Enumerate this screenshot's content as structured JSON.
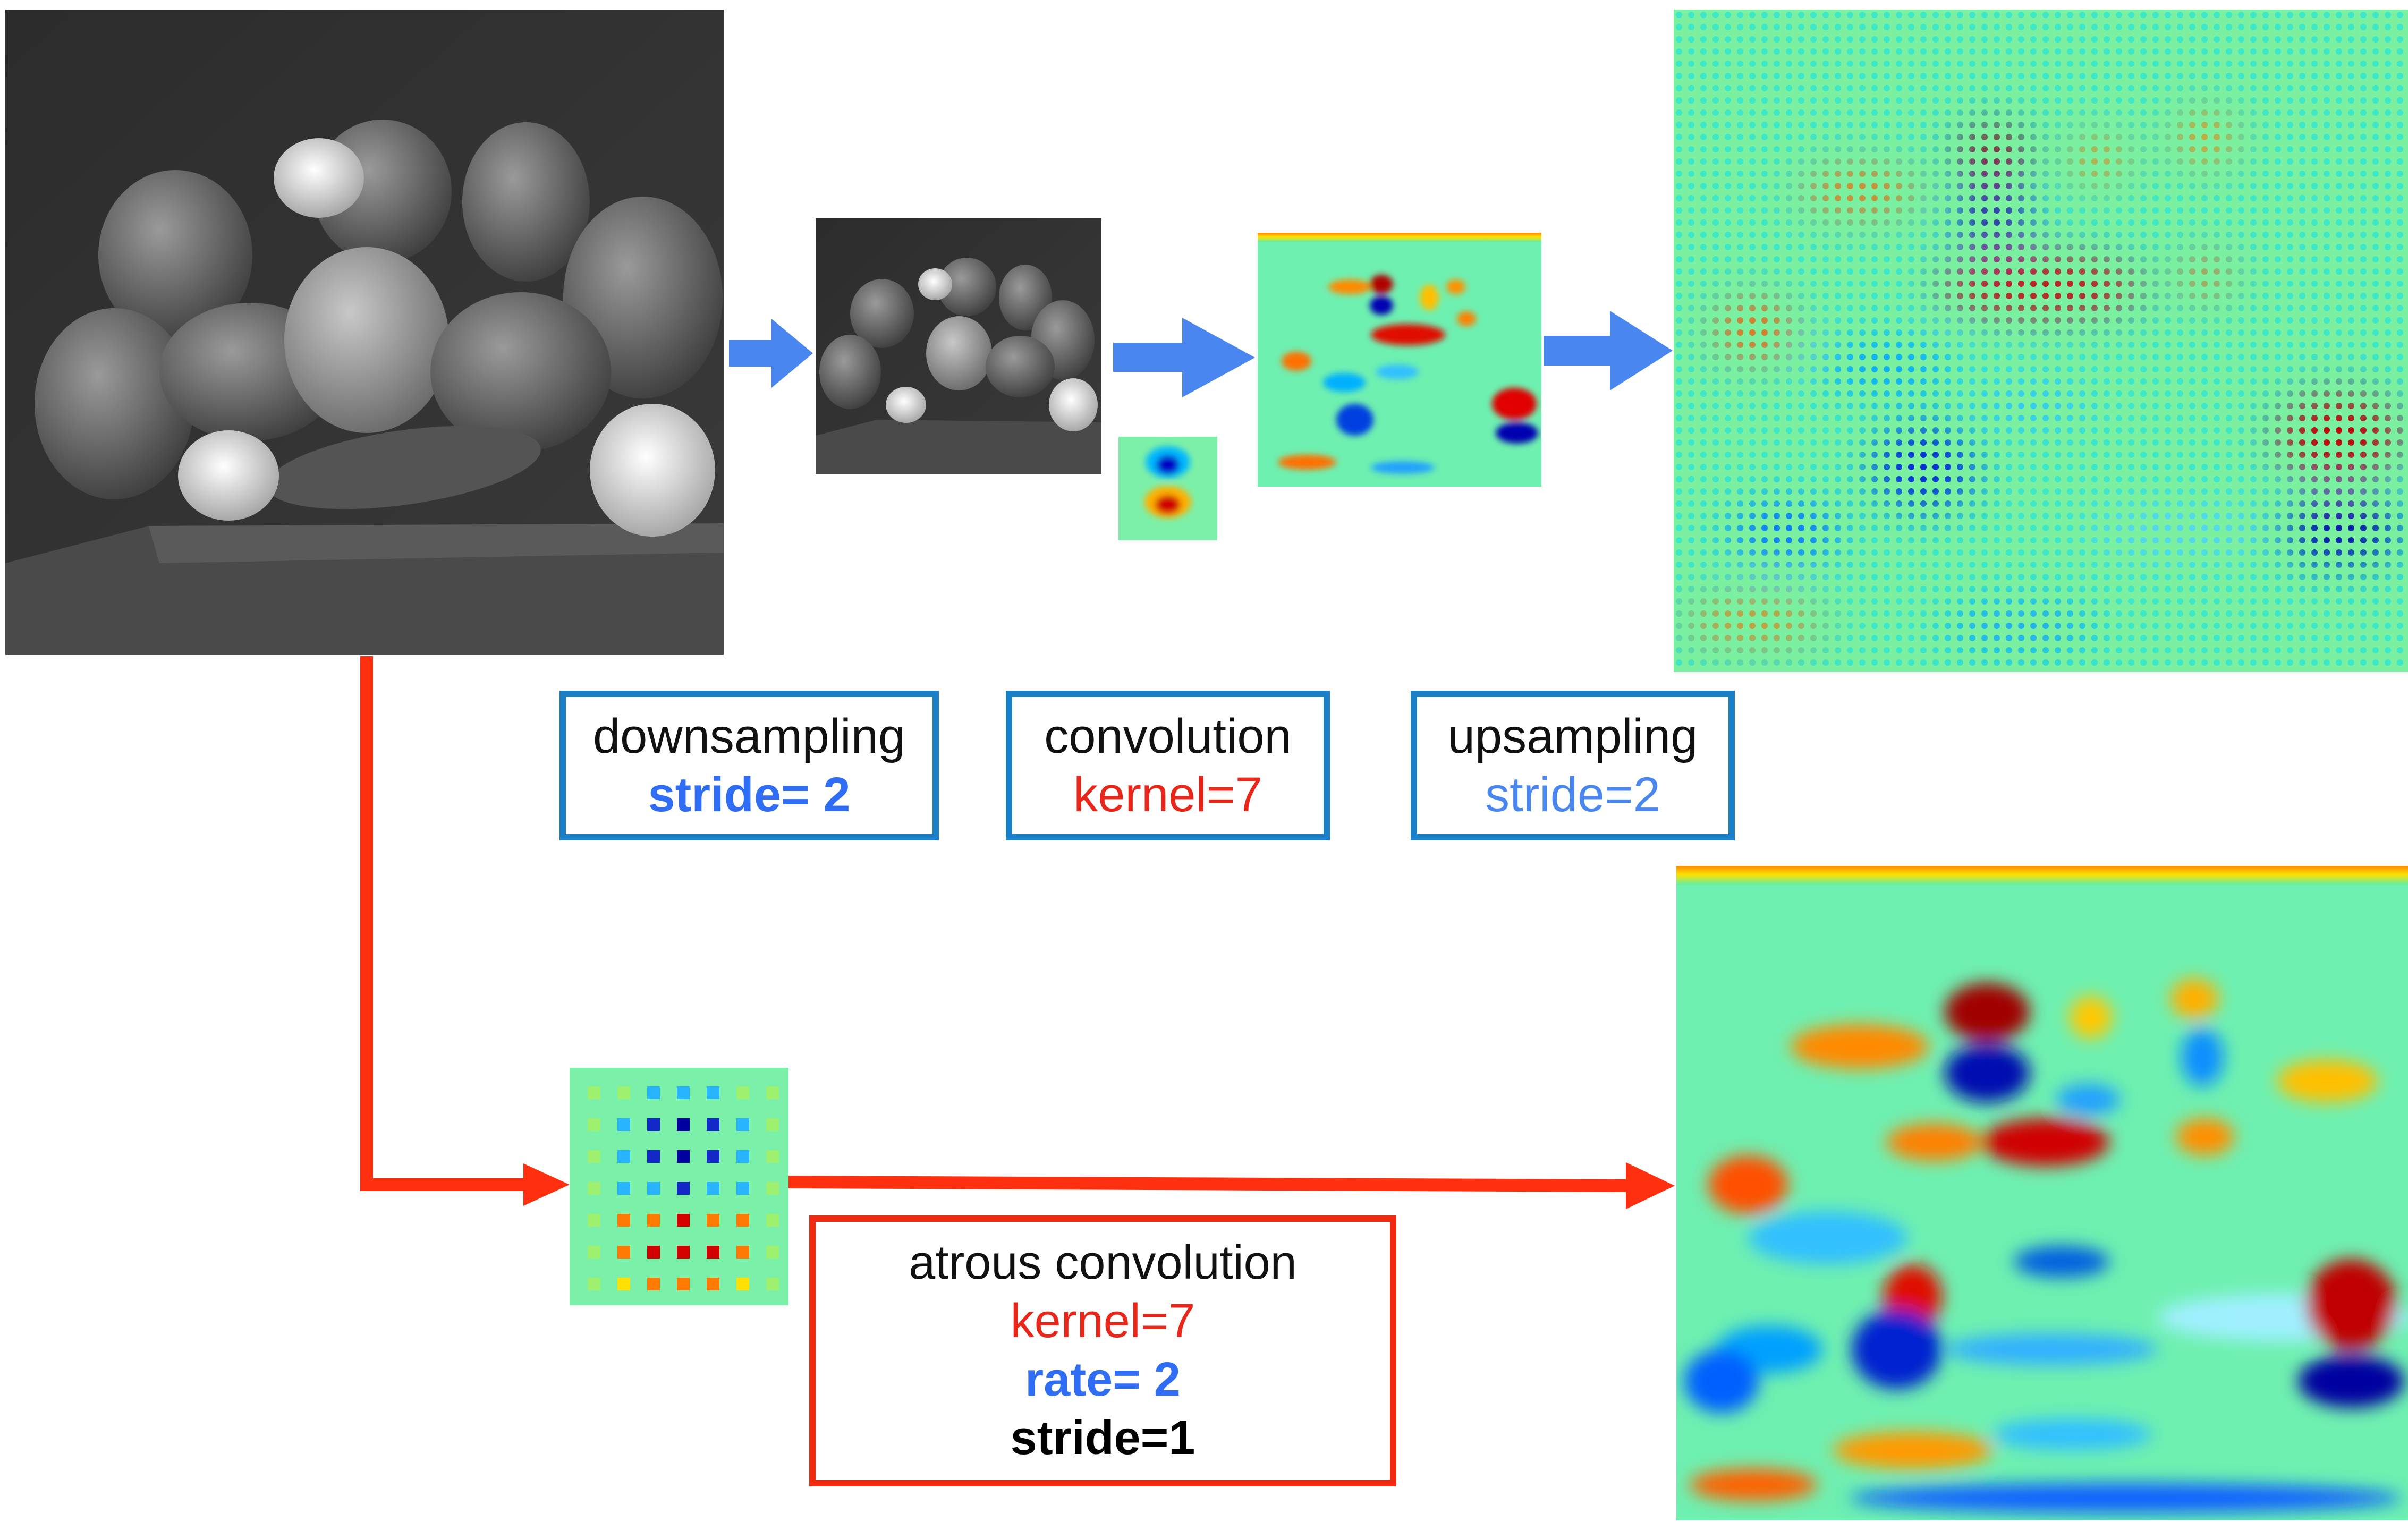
{
  "colors": {
    "blue_arrow": "#4a86f0",
    "red_arrow": "#ff3010",
    "blue_box_border": "#1a7fc6",
    "red_box_border": "#ef2a10",
    "stride_blue": "#2f6df5",
    "kernel_red": "#e8261a",
    "jet_background": "#72f0a8"
  },
  "images": {
    "input_photo": "peppers-grayscale-photo",
    "downsampled_photo": "downsampled-peppers-photo",
    "small_kernel": "7x7-kernel-heatmap",
    "low_res_feature_map": "low-resolution-feature-map",
    "upsampled_feature_map": "sparse-upsampled-feature-map",
    "dilated_kernel": "dilated-kernel-heatmap",
    "dense_feature_map": "dense-feature-map"
  },
  "labels": {
    "downsampling": {
      "title": "downsampling",
      "param": "stride= 2"
    },
    "convolution": {
      "title": "convolution",
      "param": "kernel=7"
    },
    "upsampling": {
      "title": "upsampling",
      "param": "stride=2"
    },
    "atrous": {
      "title": "atrous convolution",
      "kernel": "kernel=7",
      "rate": "rate= 2",
      "stride": "stride=1"
    }
  }
}
